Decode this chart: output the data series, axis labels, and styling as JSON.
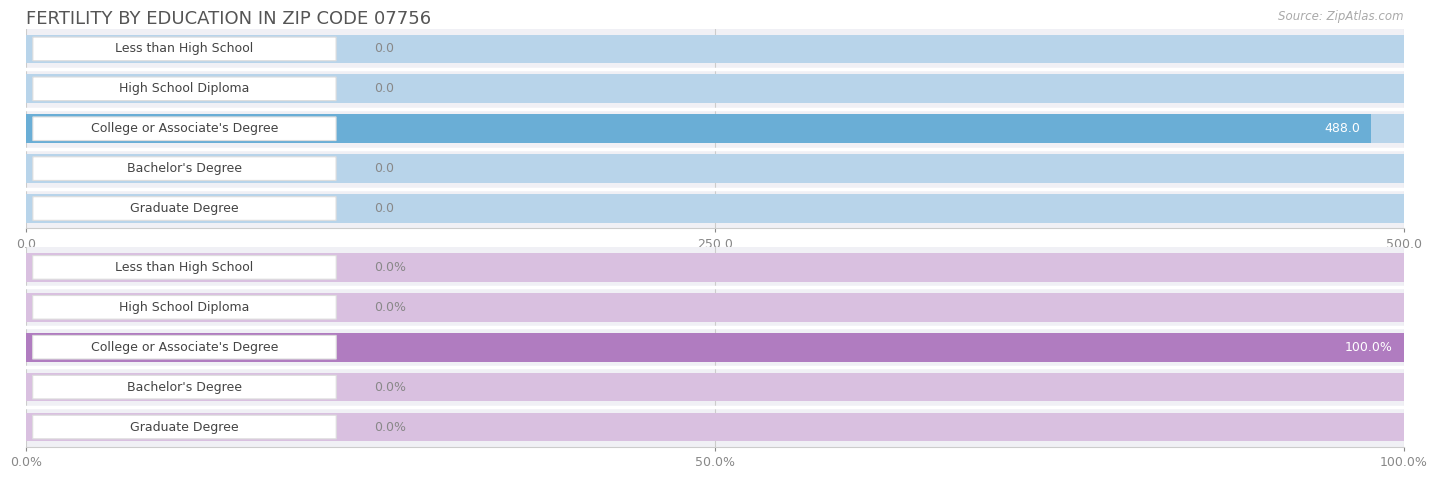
{
  "title": "FERTILITY BY EDUCATION IN ZIP CODE 07756",
  "source": "Source: ZipAtlas.com",
  "categories": [
    "Less than High School",
    "High School Diploma",
    "College or Associate's Degree",
    "Bachelor's Degree",
    "Graduate Degree"
  ],
  "values_count": [
    0.0,
    0.0,
    488.0,
    0.0,
    0.0
  ],
  "values_pct": [
    0.0,
    0.0,
    100.0,
    0.0,
    0.0
  ],
  "max_count": 500.0,
  "max_pct": 100.0,
  "xticks_count": [
    0.0,
    250.0,
    500.0
  ],
  "xticks_pct": [
    0.0,
    50.0,
    100.0
  ],
  "bar_color_count_light": "#b8d4ea",
  "bar_color_count_full": "#6aaed6",
  "bar_color_pct_light": "#d9c0e0",
  "bar_color_pct_full": "#b07cc0",
  "row_bg": "#f0f0f5",
  "label_bg_color": "#ffffff",
  "label_border_color": "#cccccc",
  "title_color": "#555555",
  "source_color": "#aaaaaa",
  "tick_color": "#888888",
  "title_fontsize": 13,
  "label_fontsize": 9,
  "value_fontsize": 9,
  "tick_fontsize": 9
}
